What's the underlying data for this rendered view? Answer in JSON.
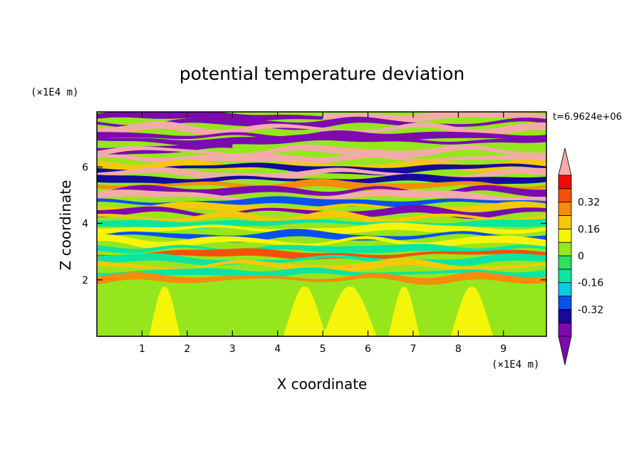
{
  "chart_data": {
    "type": "heatmap",
    "title": "potential temperature deviation",
    "xlabel": "X coordinate",
    "ylabel": "Z coordinate",
    "x_unit": "(×1E4 m)",
    "y_unit": "(×1E4 m)",
    "time_label": "t=6.9624e+06",
    "xlim": [
      0,
      9.95
    ],
    "ylim": [
      0,
      7.95
    ],
    "x_ticks": [
      1,
      2,
      3,
      4,
      5,
      6,
      7,
      8,
      9
    ],
    "y_ticks": [
      2,
      4,
      6
    ],
    "colorbar": {
      "levels": [
        -0.48,
        -0.4,
        -0.32,
        -0.24,
        -0.16,
        -0.08,
        0,
        0.08,
        0.16,
        0.24,
        0.32,
        0.4,
        0.48
      ],
      "labels": [
        "0.32",
        "0.16",
        "0",
        "-0.16",
        "-0.32"
      ],
      "label_values": [
        0.32,
        0.16,
        0,
        -0.16,
        -0.32
      ],
      "colors": [
        "#ef95ef",
        "#7c0ab0",
        "#140a9c",
        "#0a50f0",
        "#0acde0",
        "#0ae6a0",
        "#30e060",
        "#96e61e",
        "#f5f50a",
        "#f5c80a",
        "#f58c0a",
        "#f5500a",
        "#f00a0a",
        "#f5aaaa"
      ],
      "extend": "both",
      "under_color": "#7c0ab0",
      "over_color": "#f5aaaa"
    },
    "layers": [
      {
        "z": 7.8,
        "value": -0.5,
        "x": [
          0.0,
          5.0
        ]
      },
      {
        "z": 7.8,
        "value": 0.5,
        "x": [
          5.0,
          9.95
        ]
      },
      {
        "z": 7.55,
        "value": -0.5
      },
      {
        "z": 7.35,
        "value": 0.5
      },
      {
        "z": 7.1,
        "value": -0.45
      },
      {
        "z": 6.95,
        "value": -0.5
      },
      {
        "z": 6.65,
        "value": -0.5,
        "x": [
          0.0,
          3.0
        ]
      },
      {
        "z": 6.55,
        "value": 0.5
      },
      {
        "z": 6.3,
        "value": 0.5
      },
      {
        "z": 6.05,
        "value": 0.2
      },
      {
        "z": 5.95,
        "value": -0.35
      },
      {
        "z": 5.75,
        "value": 0.5
      },
      {
        "z": 5.55,
        "value": -0.4
      },
      {
        "z": 5.35,
        "value": 0.3
      },
      {
        "z": 5.15,
        "value": -0.5
      },
      {
        "z": 4.95,
        "value": 0.5
      },
      {
        "z": 4.75,
        "value": -0.3
      },
      {
        "z": 4.55,
        "value": 0.2
      },
      {
        "z": 4.4,
        "value": -0.45
      },
      {
        "z": 4.2,
        "value": 0.2
      },
      {
        "z": 4.0,
        "value": -0.1
      },
      {
        "z": 3.8,
        "value": 0.15
      },
      {
        "z": 3.55,
        "value": -0.25
      },
      {
        "z": 3.35,
        "value": 0.1
      },
      {
        "z": 3.1,
        "value": -0.15
      },
      {
        "z": 2.9,
        "value": 0.35
      },
      {
        "z": 2.7,
        "value": -0.1
      },
      {
        "z": 2.5,
        "value": 0.2
      },
      {
        "z": 2.25,
        "value": -0.1
      },
      {
        "z": 2.05,
        "value": 0.3
      }
    ],
    "boundary_layer": {
      "z_top": 1.95,
      "value": 0.02,
      "plumes_x": [
        1.5,
        4.6,
        5.6,
        6.8,
        8.3
      ]
    }
  }
}
